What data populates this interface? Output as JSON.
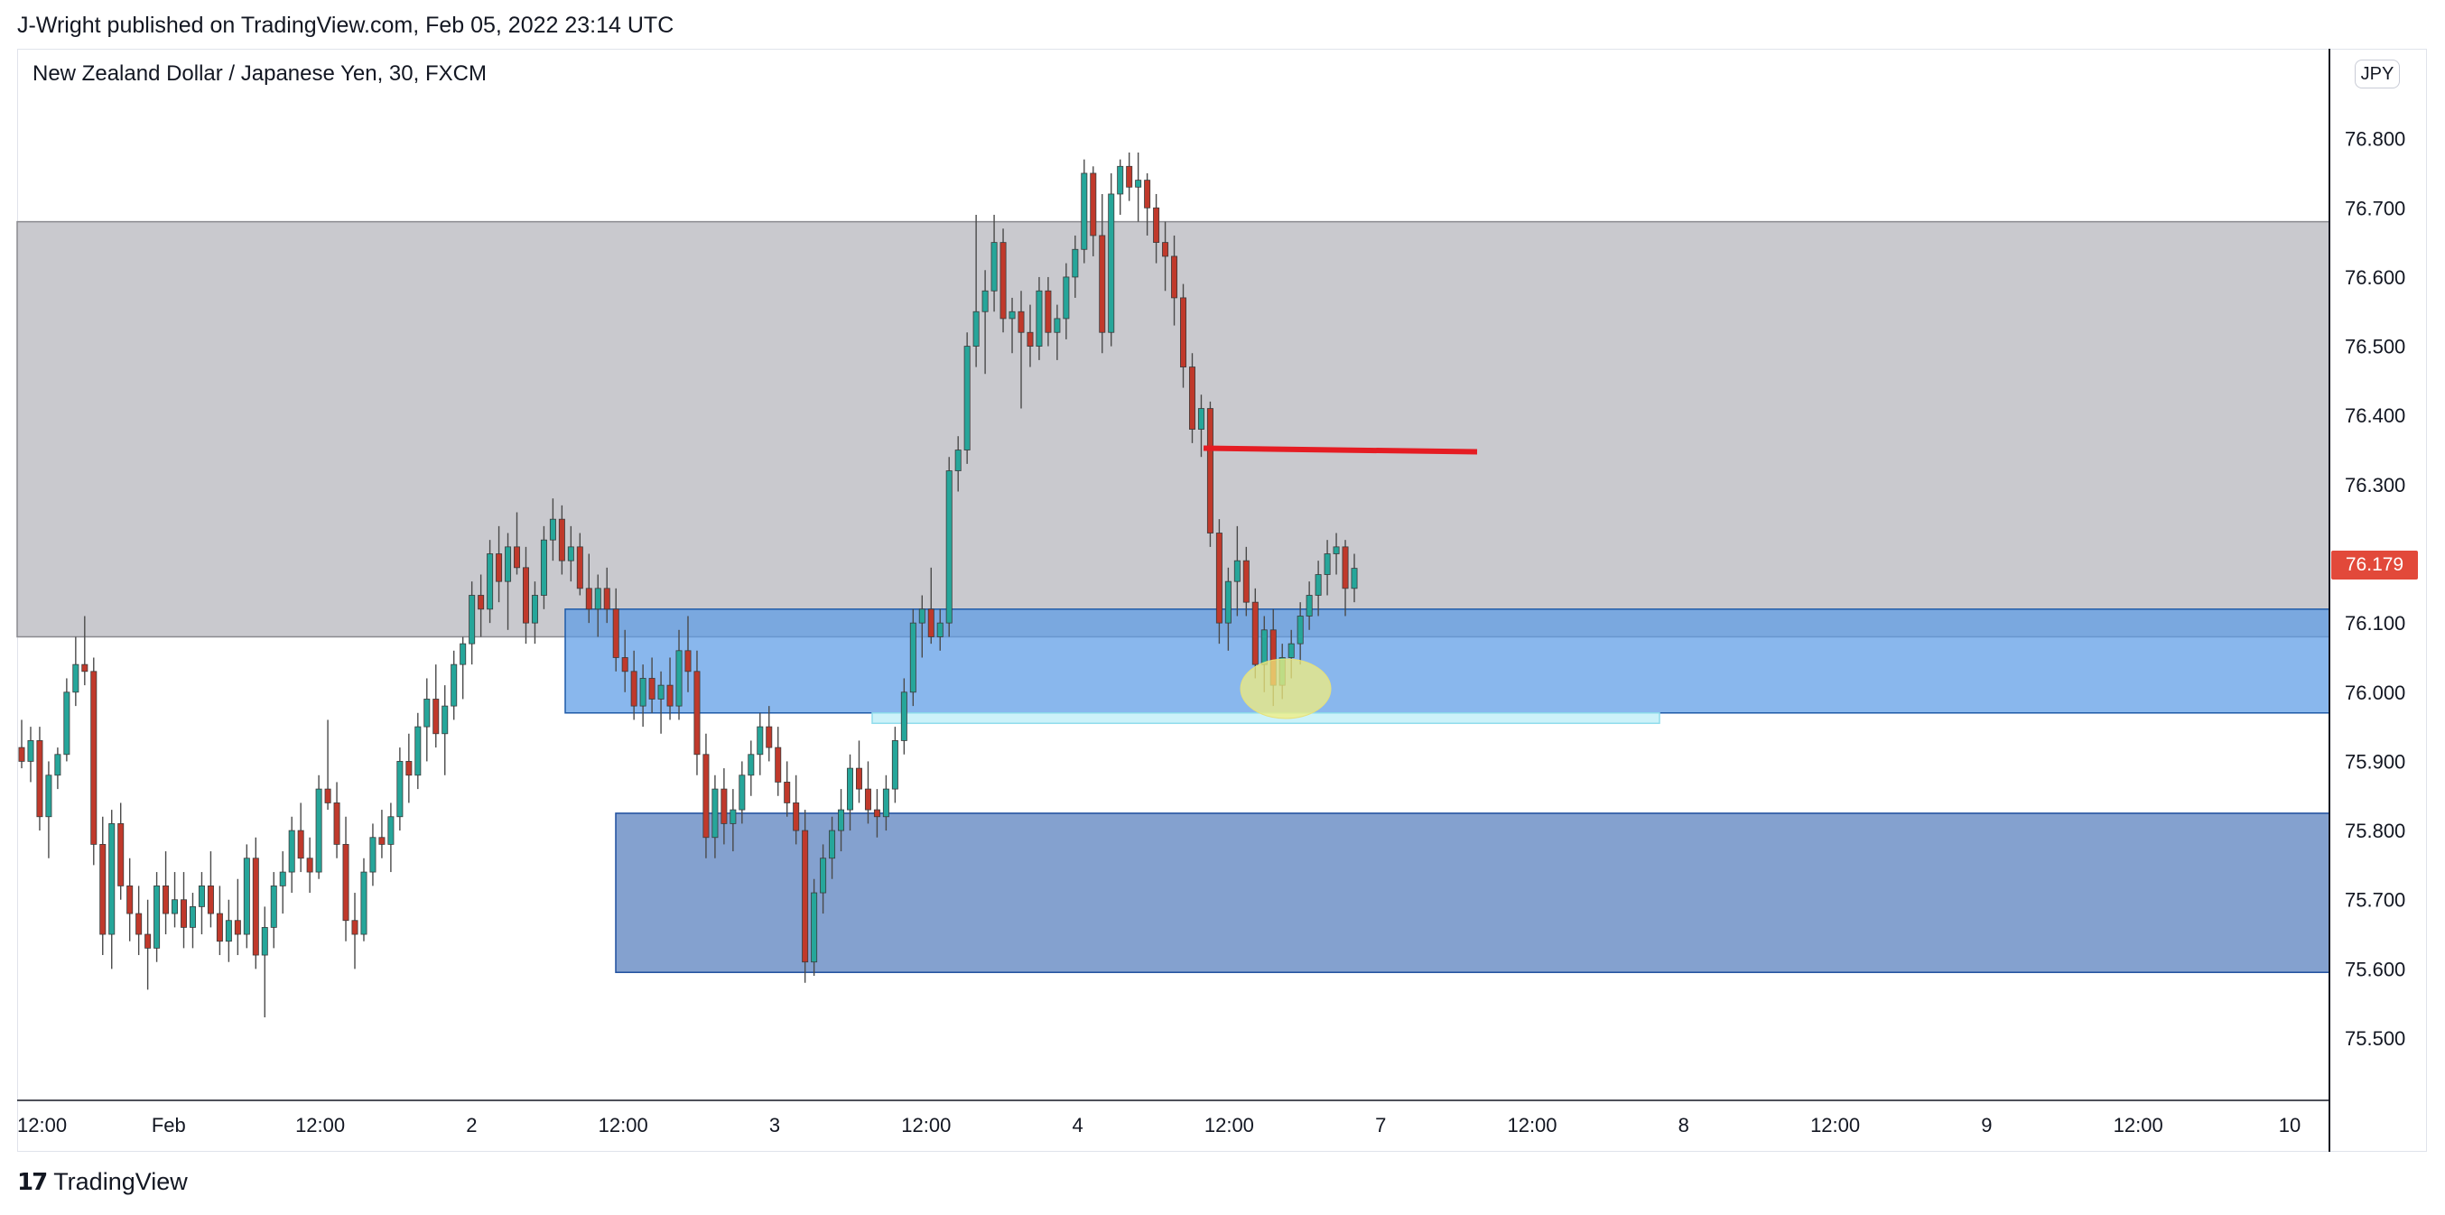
{
  "header": {
    "published_by": "J-Wright published on TradingView.com, Feb 05, 2022 23:14 UTC"
  },
  "chart_title": "New Zealand Dollar / Japanese Yen, 30, FXCM",
  "currency": "JPY",
  "last_price": "76.179",
  "brand": {
    "logo": "17",
    "name": "TradingView"
  },
  "colors": {
    "up": "#26a69a",
    "down": "#c0392b",
    "wick": "#4a4a4a",
    "supply_zone": "#c9c9ce",
    "demand_zone_upper": "#5b9be6",
    "demand_zone_lower": "#6f91c7",
    "marker_line": "#e51c23",
    "highlight": "#f1ee7e",
    "price_tag": "#e2493a"
  },
  "chart_data": {
    "type": "candlestick",
    "title": "New Zealand Dollar / Japanese Yen, 30, FXCM",
    "xlabel": "",
    "ylabel": "",
    "ylim": [
      75.41,
      76.93
    ],
    "y_ticks": [
      "76.800",
      "76.700",
      "76.600",
      "76.500",
      "76.400",
      "76.300",
      "76.100",
      "76.000",
      "75.900",
      "75.800",
      "75.700",
      "75.600",
      "75.500"
    ],
    "x_ticks": [
      "12:00",
      "Feb",
      "12:00",
      "2",
      "12:00",
      "3",
      "12:00",
      "4",
      "12:00",
      "7",
      "12:00",
      "8",
      "12:00",
      "9",
      "12:00",
      "10"
    ],
    "grid": false,
    "zones": [
      {
        "name": "supply-zone",
        "from_tick": "start",
        "to_tick": "end",
        "top": 76.68,
        "bottom": 76.08
      },
      {
        "name": "demand-zone-upper",
        "from_tick": "2 12:00 area",
        "to_tick": "end",
        "top": 76.12,
        "bottom": 75.97
      },
      {
        "name": "demand-zone-lower",
        "from_tick": "2 12:00 area",
        "to_tick": "end",
        "top": 75.825,
        "bottom": 75.595
      },
      {
        "name": "thin-zone",
        "from_tick": "3 12:00 area",
        "to_tick": "7 12:00 area",
        "top": 75.97,
        "bottom": 75.955
      }
    ],
    "horizontal_line": {
      "price": 76.35
    },
    "highlight_price": 76.005,
    "candles": [
      [
        75.92,
        75.96,
        75.89,
        75.9
      ],
      [
        75.9,
        75.95,
        75.87,
        75.93
      ],
      [
        75.93,
        75.95,
        75.8,
        75.82
      ],
      [
        75.82,
        75.9,
        75.76,
        75.88
      ],
      [
        75.88,
        75.92,
        75.86,
        75.91
      ],
      [
        75.91,
        76.02,
        75.9,
        76.0
      ],
      [
        76.0,
        76.08,
        75.98,
        76.04
      ],
      [
        76.04,
        76.11,
        76.01,
        76.03
      ],
      [
        76.03,
        76.05,
        75.75,
        75.78
      ],
      [
        75.78,
        75.82,
        75.62,
        75.65
      ],
      [
        75.65,
        75.83,
        75.6,
        75.81
      ],
      [
        75.81,
        75.84,
        75.7,
        75.72
      ],
      [
        75.72,
        75.76,
        75.64,
        75.68
      ],
      [
        75.68,
        75.72,
        75.62,
        75.65
      ],
      [
        75.65,
        75.7,
        75.57,
        75.63
      ],
      [
        75.63,
        75.74,
        75.61,
        75.72
      ],
      [
        75.72,
        75.77,
        75.65,
        75.68
      ],
      [
        75.68,
        75.74,
        75.66,
        75.7
      ],
      [
        75.7,
        75.74,
        75.63,
        75.66
      ],
      [
        75.66,
        75.71,
        75.63,
        75.69
      ],
      [
        75.69,
        75.74,
        75.65,
        75.72
      ],
      [
        75.72,
        75.77,
        75.66,
        75.68
      ],
      [
        75.68,
        75.72,
        75.62,
        75.64
      ],
      [
        75.64,
        75.7,
        75.61,
        75.67
      ],
      [
        75.67,
        75.73,
        75.62,
        75.65
      ],
      [
        75.65,
        75.78,
        75.63,
        75.76
      ],
      [
        75.76,
        75.79,
        75.6,
        75.62
      ],
      [
        75.62,
        75.69,
        75.53,
        75.66
      ],
      [
        75.66,
        75.74,
        75.63,
        75.72
      ],
      [
        75.72,
        75.77,
        75.68,
        75.74
      ],
      [
        75.74,
        75.82,
        75.71,
        75.8
      ],
      [
        75.8,
        75.84,
        75.74,
        75.76
      ],
      [
        75.76,
        75.79,
        75.71,
        75.74
      ],
      [
        75.74,
        75.88,
        75.73,
        75.86
      ],
      [
        75.86,
        75.96,
        75.83,
        75.84
      ],
      [
        75.84,
        75.87,
        75.76,
        75.78
      ],
      [
        75.78,
        75.82,
        75.64,
        75.67
      ],
      [
        75.67,
        75.71,
        75.6,
        75.65
      ],
      [
        75.65,
        75.76,
        75.64,
        75.74
      ],
      [
        75.74,
        75.81,
        75.72,
        75.79
      ],
      [
        75.79,
        75.83,
        75.76,
        75.78
      ],
      [
        75.78,
        75.84,
        75.74,
        75.82
      ],
      [
        75.82,
        75.92,
        75.8,
        75.9
      ],
      [
        75.9,
        75.94,
        75.84,
        75.88
      ],
      [
        75.88,
        75.97,
        75.86,
        75.95
      ],
      [
        75.95,
        76.02,
        75.9,
        75.99
      ],
      [
        75.99,
        76.04,
        75.92,
        75.94
      ],
      [
        75.94,
        76.01,
        75.88,
        75.98
      ],
      [
        75.98,
        76.06,
        75.96,
        76.04
      ],
      [
        76.04,
        76.08,
        75.99,
        76.07
      ],
      [
        76.07,
        76.16,
        76.04,
        76.14
      ],
      [
        76.14,
        76.17,
        76.08,
        76.12
      ],
      [
        76.12,
        76.22,
        76.1,
        76.2
      ],
      [
        76.2,
        76.24,
        76.13,
        76.16
      ],
      [
        76.16,
        76.23,
        76.09,
        76.21
      ],
      [
        76.21,
        76.26,
        76.17,
        76.18
      ],
      [
        76.18,
        76.21,
        76.07,
        76.1
      ],
      [
        76.1,
        76.16,
        76.07,
        76.14
      ],
      [
        76.14,
        76.24,
        76.12,
        76.22
      ],
      [
        76.22,
        76.28,
        76.19,
        76.25
      ],
      [
        76.25,
        76.27,
        76.17,
        76.19
      ],
      [
        76.19,
        76.24,
        76.16,
        76.21
      ],
      [
        76.21,
        76.23,
        76.14,
        76.15
      ],
      [
        76.15,
        76.2,
        76.1,
        76.12
      ],
      [
        76.12,
        76.17,
        76.08,
        76.15
      ],
      [
        76.15,
        76.18,
        76.1,
        76.12
      ],
      [
        76.12,
        76.15,
        76.03,
        76.05
      ],
      [
        76.05,
        76.09,
        76.0,
        76.03
      ],
      [
        76.03,
        76.06,
        75.96,
        75.98
      ],
      [
        75.98,
        76.04,
        75.95,
        76.02
      ],
      [
        76.02,
        76.05,
        75.97,
        75.99
      ],
      [
        75.99,
        76.03,
        75.94,
        76.01
      ],
      [
        76.01,
        76.05,
        75.96,
        75.98
      ],
      [
        75.98,
        76.09,
        75.96,
        76.06
      ],
      [
        76.06,
        76.11,
        76.0,
        76.03
      ],
      [
        76.03,
        76.06,
        75.88,
        75.91
      ],
      [
        75.91,
        75.94,
        75.76,
        75.79
      ],
      [
        75.79,
        75.88,
        75.76,
        75.86
      ],
      [
        75.86,
        75.89,
        75.78,
        75.81
      ],
      [
        75.81,
        75.86,
        75.77,
        75.83
      ],
      [
        75.83,
        75.9,
        75.81,
        75.88
      ],
      [
        75.88,
        75.93,
        75.85,
        75.91
      ],
      [
        75.91,
        75.97,
        75.88,
        75.95
      ],
      [
        75.95,
        75.98,
        75.9,
        75.92
      ],
      [
        75.92,
        75.95,
        75.85,
        75.87
      ],
      [
        75.87,
        75.9,
        75.82,
        75.84
      ],
      [
        75.84,
        75.88,
        75.78,
        75.8
      ],
      [
        75.8,
        75.83,
        75.58,
        75.61
      ],
      [
        75.61,
        75.73,
        75.59,
        75.71
      ],
      [
        75.71,
        75.78,
        75.68,
        75.76
      ],
      [
        75.76,
        75.82,
        75.73,
        75.8
      ],
      [
        75.8,
        75.86,
        75.77,
        75.83
      ],
      [
        75.83,
        75.91,
        75.8,
        75.89
      ],
      [
        75.89,
        75.93,
        75.84,
        75.86
      ],
      [
        75.86,
        75.9,
        75.81,
        75.83
      ],
      [
        75.83,
        75.86,
        75.79,
        75.82
      ],
      [
        75.82,
        75.88,
        75.8,
        75.86
      ],
      [
        75.86,
        75.95,
        75.84,
        75.93
      ],
      [
        75.93,
        76.02,
        75.91,
        76.0
      ],
      [
        76.0,
        76.12,
        75.98,
        76.1
      ],
      [
        76.1,
        76.14,
        76.05,
        76.12
      ],
      [
        76.12,
        76.18,
        76.07,
        76.08
      ],
      [
        76.08,
        76.12,
        76.06,
        76.1
      ],
      [
        76.1,
        76.34,
        76.08,
        76.32
      ],
      [
        76.32,
        76.37,
        76.29,
        76.35
      ],
      [
        76.35,
        76.52,
        76.33,
        76.5
      ],
      [
        76.5,
        76.69,
        76.47,
        76.55
      ],
      [
        76.55,
        76.61,
        76.46,
        76.58
      ],
      [
        76.58,
        76.69,
        76.55,
        76.65
      ],
      [
        76.65,
        76.67,
        76.52,
        76.54
      ],
      [
        76.54,
        76.57,
        76.49,
        76.55
      ],
      [
        76.55,
        76.58,
        76.41,
        76.52
      ],
      [
        76.52,
        76.56,
        76.47,
        76.5
      ],
      [
        76.5,
        76.6,
        76.48,
        76.58
      ],
      [
        76.58,
        76.6,
        76.5,
        76.52
      ],
      [
        76.52,
        76.56,
        76.48,
        76.54
      ],
      [
        76.54,
        76.62,
        76.51,
        76.6
      ],
      [
        76.6,
        76.66,
        76.57,
        76.64
      ],
      [
        76.64,
        76.77,
        76.62,
        76.75
      ],
      [
        76.75,
        76.76,
        76.63,
        76.66
      ],
      [
        76.66,
        76.72,
        76.49,
        76.52
      ],
      [
        76.52,
        76.75,
        76.5,
        76.72
      ],
      [
        76.72,
        76.77,
        76.69,
        76.76
      ],
      [
        76.76,
        76.78,
        76.71,
        76.73
      ],
      [
        76.73,
        76.78,
        76.68,
        76.74
      ],
      [
        76.74,
        76.75,
        76.66,
        76.7
      ],
      [
        76.7,
        76.72,
        76.62,
        76.65
      ],
      [
        76.65,
        76.68,
        76.58,
        76.63
      ],
      [
        76.63,
        76.66,
        76.53,
        76.57
      ],
      [
        76.57,
        76.59,
        76.44,
        76.47
      ],
      [
        76.47,
        76.49,
        76.36,
        76.38
      ],
      [
        76.38,
        76.43,
        76.34,
        76.41
      ],
      [
        76.41,
        76.42,
        76.21,
        76.23
      ],
      [
        76.23,
        76.25,
        76.07,
        76.1
      ],
      [
        76.1,
        76.18,
        76.06,
        76.16
      ],
      [
        76.16,
        76.24,
        76.11,
        76.19
      ],
      [
        76.19,
        76.21,
        76.11,
        76.13
      ],
      [
        76.13,
        76.15,
        76.02,
        76.04
      ],
      [
        76.04,
        76.11,
        76.0,
        76.09
      ],
      [
        76.09,
        76.12,
        75.98,
        76.01
      ],
      [
        76.01,
        76.07,
        75.99,
        76.05
      ],
      [
        76.05,
        76.09,
        76.02,
        76.07
      ],
      [
        76.07,
        76.13,
        76.04,
        76.11
      ],
      [
        76.11,
        76.16,
        76.09,
        76.14
      ],
      [
        76.14,
        76.19,
        76.11,
        76.17
      ],
      [
        76.17,
        76.22,
        76.14,
        76.2
      ],
      [
        76.2,
        76.23,
        76.17,
        76.21
      ],
      [
        76.21,
        76.22,
        76.11,
        76.15
      ],
      [
        76.15,
        76.2,
        76.13,
        76.179
      ]
    ]
  }
}
